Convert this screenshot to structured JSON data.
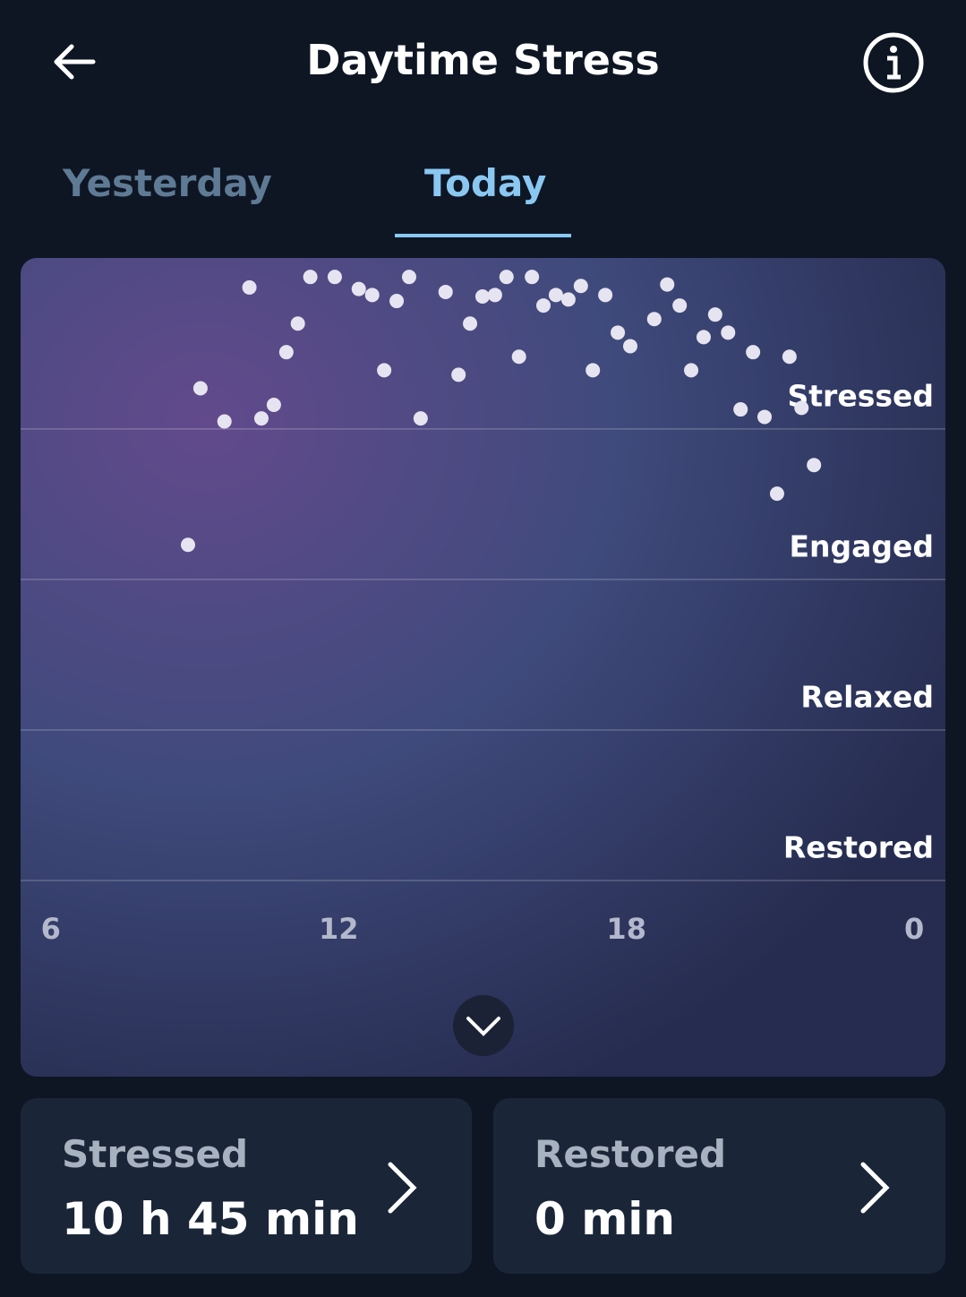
{
  "header": {
    "title": "Daytime Stress"
  },
  "tabs": [
    "Yesterday",
    "Today"
  ],
  "chart_data": {
    "type": "line",
    "x": [
      8.86,
      9.12,
      9.62,
      10.14,
      10.39,
      10.65,
      10.91,
      11.15,
      11.41,
      11.92,
      12.42,
      12.7,
      12.95,
      13.21,
      13.47,
      13.71,
      14.23,
      14.5,
      14.74,
      15.0,
      15.26,
      15.5,
      15.76,
      16.03,
      16.27,
      16.53,
      16.79,
      17.05,
      17.3,
      17.56,
      17.82,
      18.08,
      18.58,
      18.85,
      19.11,
      19.35,
      19.61,
      19.85,
      20.12,
      20.38,
      20.64,
      20.88,
      21.14,
      21.4,
      21.65,
      21.91
    ],
    "values": [
      2.23,
      3.27,
      3.05,
      3.94,
      3.07,
      3.16,
      3.51,
      3.7,
      4.01,
      4.01,
      3.93,
      3.89,
      3.39,
      3.85,
      4.01,
      3.07,
      3.91,
      3.36,
      3.7,
      3.88,
      3.89,
      4.01,
      3.48,
      4.01,
      3.82,
      3.89,
      3.86,
      3.95,
      3.39,
      3.89,
      3.64,
      3.55,
      3.73,
      3.96,
      3.82,
      3.39,
      3.61,
      3.76,
      3.64,
      3.13,
      3.51,
      3.08,
      2.57,
      3.48,
      3.14,
      2.76
    ],
    "color": "#e6e4f0",
    "xlim": [
      5.37,
      24.65
    ],
    "xticks": [
      6,
      12,
      18,
      {
        "value": 24,
        "label": "0"
      }
    ],
    "ylim": [
      0,
      4.13
    ],
    "yticks": [
      {
        "value": 0,
        "label": "Restored"
      },
      {
        "value": 1,
        "label": "Relaxed"
      },
      {
        "value": 2,
        "label": "Engaged"
      },
      {
        "value": 3,
        "label": "Stressed"
      }
    ],
    "grid": true
  },
  "cards": [
    {
      "title": "Stressed",
      "value": "10 h 45 min"
    },
    {
      "title": "Restored",
      "value": "0 min"
    }
  ]
}
